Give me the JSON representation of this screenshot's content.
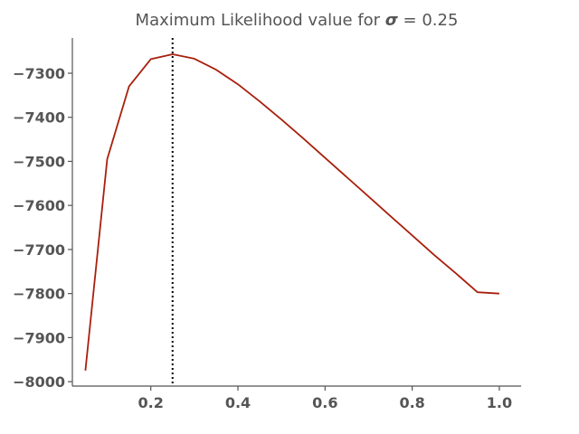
{
  "chart_data": {
    "type": "line",
    "title": {
      "prefix": "Maximum Likelihood value for ",
      "symbol": "σ",
      "suffix": " = 0.25"
    },
    "xlabel": "",
    "ylabel": "",
    "xlim": [
      0.02,
      1.05
    ],
    "ylim": [
      -8010,
      -7220
    ],
    "x_ticks": [
      0.2,
      0.4,
      0.6,
      0.8,
      1.0
    ],
    "x_tick_labels": [
      "0.2",
      "0.4",
      "0.6",
      "0.8",
      "1.0"
    ],
    "y_ticks": [
      -7300,
      -7400,
      -7500,
      -7600,
      -7700,
      -7800,
      -7900,
      -8000
    ],
    "y_tick_labels": [
      "−7300",
      "−7400",
      "−7500",
      "−7600",
      "−7700",
      "−7800",
      "−7900",
      "−8000"
    ],
    "grid": false,
    "series": [
      {
        "color": "#a8200d",
        "x": [
          0.05,
          0.1,
          0.15,
          0.2,
          0.25,
          0.3,
          0.35,
          0.4,
          0.45,
          0.5,
          0.55,
          0.6,
          0.65,
          0.7,
          0.75,
          0.8,
          0.85,
          0.9,
          0.95,
          1.0
        ],
        "y": [
          -7975,
          -7495,
          -7330,
          -7268,
          -7257,
          -7267,
          -7292,
          -7325,
          -7364,
          -7405,
          -7448,
          -7492,
          -7536,
          -7580,
          -7624,
          -7668,
          -7712,
          -7754,
          -7797,
          -7800
        ]
      }
    ],
    "reference_line": {
      "x": 0.25,
      "style": "dotted",
      "color": "#000000"
    },
    "axis_color": "#555555"
  }
}
